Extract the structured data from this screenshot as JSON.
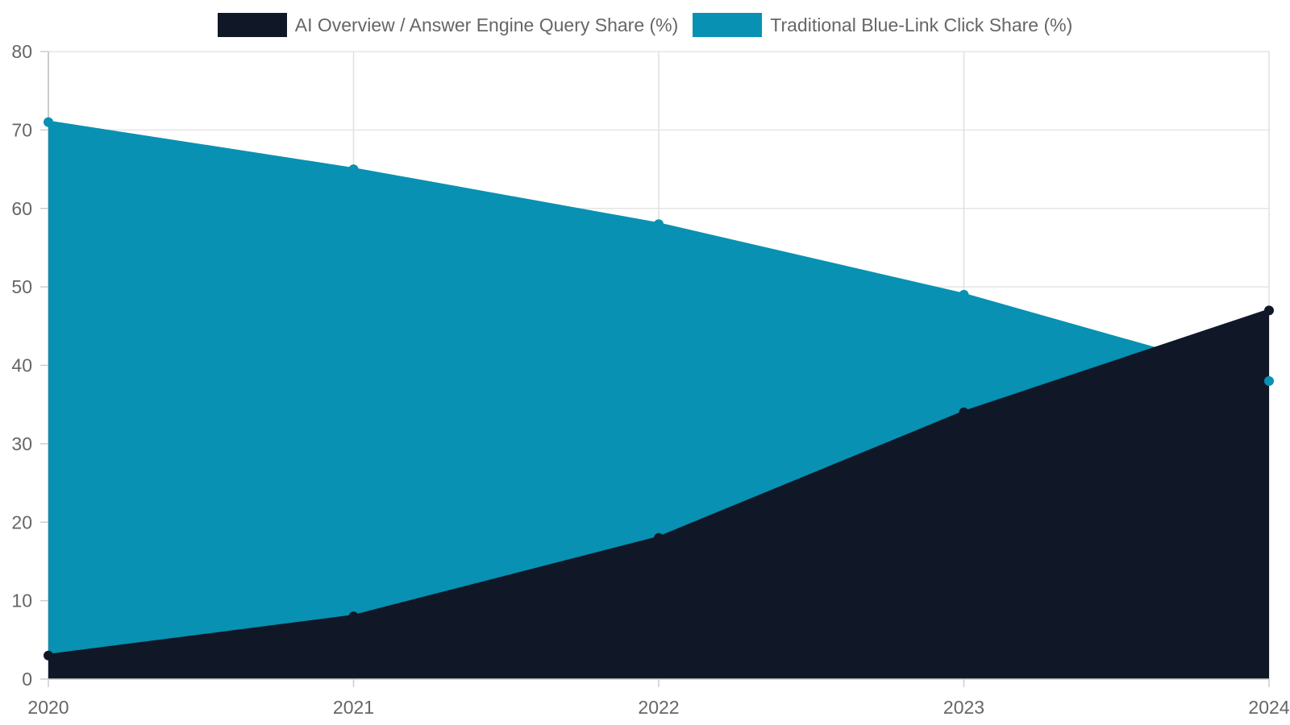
{
  "chart_data": {
    "type": "area",
    "title": "",
    "xlabel": "",
    "ylabel": "",
    "categories": [
      "2020",
      "2021",
      "2022",
      "2023",
      "2024"
    ],
    "ylim": [
      0,
      80
    ],
    "yticks": [
      0,
      10,
      20,
      30,
      40,
      50,
      60,
      70,
      80
    ],
    "grid": true,
    "legend_position": "top",
    "series": [
      {
        "name": "AI Overview / Answer Engine Query Share (%)",
        "values": [
          3,
          8,
          18,
          34,
          47
        ],
        "color": "#101828"
      },
      {
        "name": "Traditional Blue-Link Click Share (%)",
        "values": [
          71,
          65,
          58,
          49,
          38
        ],
        "color": "#0891b2"
      }
    ]
  }
}
